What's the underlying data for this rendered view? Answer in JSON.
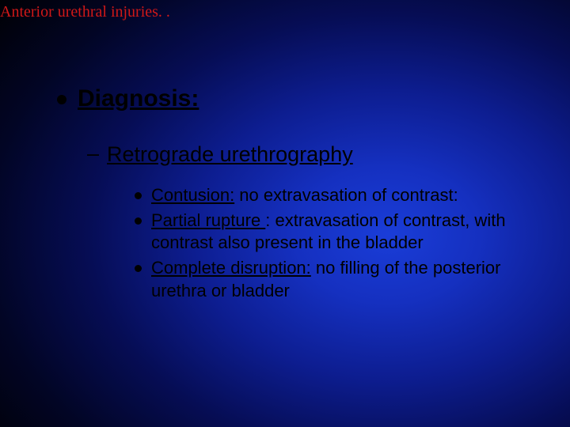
{
  "slide": {
    "title": "Anterior urethral injuries. .",
    "title_color": "#d01818",
    "title_fontsize": 20,
    "bg_gradient_center": "#1a3dd8",
    "bg_gradient_edge": "#000000"
  },
  "level1": {
    "bullet_color": "#000000",
    "text": "Diagnosis:",
    "fontsize": 30
  },
  "level2": {
    "dash": "–",
    "text": "Retrograde urethrography",
    "fontsize": 27
  },
  "level3": {
    "bullet_color": "#000000",
    "fontsize": 22,
    "items": [
      {
        "term": "Contusion:",
        "rest": " no extravasation of contrast:"
      },
      {
        "term": "Partial rupture ",
        "rest": ": extravasation of contrast, with contrast also present in the bladder"
      },
      {
        "term": "Complete disruption:",
        "rest": " no filling of the posterior urethra or bladder"
      }
    ]
  }
}
